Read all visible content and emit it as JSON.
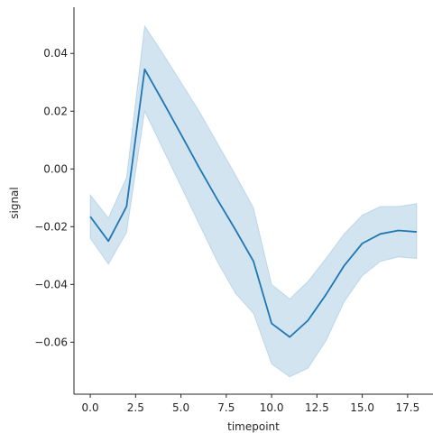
{
  "chart_data": {
    "type": "line",
    "title": "",
    "xlabel": "timepoint",
    "ylabel": "signal",
    "xlim": [
      -0.9,
      18.9
    ],
    "ylim": [
      -0.078,
      0.056
    ],
    "grid": false,
    "x_ticks": [
      0.0,
      2.5,
      5.0,
      7.5,
      10.0,
      12.5,
      15.0,
      17.5
    ],
    "x_tick_labels": [
      "0.0",
      "2.5",
      "5.0",
      "7.5",
      "10.0",
      "12.5",
      "15.0",
      "17.5"
    ],
    "y_ticks": [
      -0.06,
      -0.04,
      -0.02,
      0.0,
      0.02,
      0.04
    ],
    "y_tick_labels": [
      "−0.06",
      "−0.04",
      "−0.02",
      "0.00",
      "0.02",
      "0.04"
    ],
    "line_color": "#1f77b4",
    "band_color": "#1f77b4",
    "band_opacity": 0.2,
    "series": [
      {
        "x": [
          0,
          1,
          2,
          3,
          4,
          5,
          6,
          7,
          8,
          9,
          10,
          11,
          12,
          13,
          14,
          15,
          16,
          17,
          18
        ],
        "y": [
          -0.0165,
          -0.025,
          -0.013,
          0.0345,
          0.0234,
          0.012,
          0.0005,
          -0.0105,
          -0.021,
          -0.032,
          -0.0535,
          -0.0582,
          -0.0525,
          -0.0435,
          -0.0335,
          -0.0258,
          -0.0225,
          -0.0213,
          -0.0218
        ],
        "ci_lower": [
          -0.024,
          -0.033,
          -0.022,
          0.02,
          0.007,
          -0.006,
          -0.019,
          -0.032,
          -0.043,
          -0.05,
          -0.0675,
          -0.072,
          -0.069,
          -0.0595,
          -0.046,
          -0.037,
          -0.032,
          -0.0305,
          -0.031
        ],
        "ci_upper": [
          -0.009,
          -0.017,
          -0.003,
          0.0495,
          0.04,
          0.03,
          0.02,
          0.009,
          -0.002,
          -0.0135,
          -0.04,
          -0.045,
          -0.039,
          -0.031,
          -0.0225,
          -0.016,
          -0.013,
          -0.013,
          -0.012
        ]
      }
    ]
  }
}
